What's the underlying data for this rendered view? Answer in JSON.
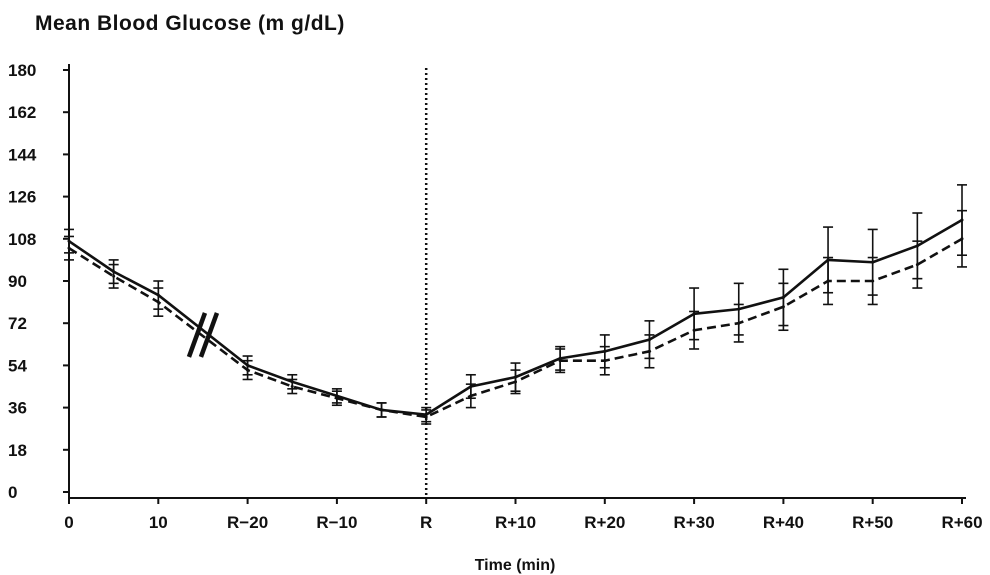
{
  "chart_data": {
    "type": "line",
    "title": "Mean Blood Glucose (m g/dL)",
    "xlabel": "Time (min)",
    "ylabel": "",
    "ylim": [
      0,
      180
    ],
    "yticks": [
      0,
      18,
      36,
      54,
      72,
      90,
      108,
      126,
      144,
      162,
      180
    ],
    "xticks": [
      {
        "pos": 0,
        "label": "0"
      },
      {
        "pos": 10,
        "label": "10"
      },
      {
        "pos": 20,
        "label": "R−20"
      },
      {
        "pos": 30,
        "label": "R−10"
      },
      {
        "pos": 40,
        "label": "R"
      },
      {
        "pos": 50,
        "label": "R+10"
      },
      {
        "pos": 60,
        "label": "R+20"
      },
      {
        "pos": 70,
        "label": "R+30"
      },
      {
        "pos": 80,
        "label": "R+40"
      },
      {
        "pos": 90,
        "label": "R+50"
      },
      {
        "pos": 100,
        "label": "R+60"
      }
    ],
    "axis_break_at": 15,
    "reference_line_at": 40,
    "series": [
      {
        "style": "solid",
        "x": [
          0,
          5,
          10,
          20,
          25,
          30,
          35,
          40,
          45,
          50,
          55,
          60,
          65,
          70,
          75,
          80,
          85,
          90,
          95,
          100
        ],
        "values": [
          107,
          94,
          84,
          54,
          47,
          41,
          35,
          33,
          45,
          49,
          57,
          60,
          65,
          76,
          78,
          83,
          99,
          98,
          105,
          116
        ],
        "errors": [
          5,
          5,
          6,
          4,
          3,
          3,
          3,
          3,
          5,
          6,
          5,
          7,
          8,
          11,
          11,
          12,
          14,
          14,
          14,
          15
        ]
      },
      {
        "style": "dashed",
        "x": [
          0,
          5,
          10,
          20,
          25,
          30,
          35,
          40,
          45,
          50,
          55,
          60,
          65,
          70,
          75,
          80,
          85,
          90,
          95,
          100
        ],
        "values": [
          104,
          92,
          81,
          52,
          45,
          40,
          35,
          32,
          41,
          47,
          56,
          56,
          60,
          69,
          72,
          79,
          90,
          90,
          97,
          108
        ],
        "errors": [
          5,
          5,
          6,
          4,
          3,
          3,
          3,
          3,
          5,
          5,
          5,
          6,
          7,
          8,
          8,
          10,
          10,
          10,
          10,
          12
        ]
      }
    ]
  }
}
